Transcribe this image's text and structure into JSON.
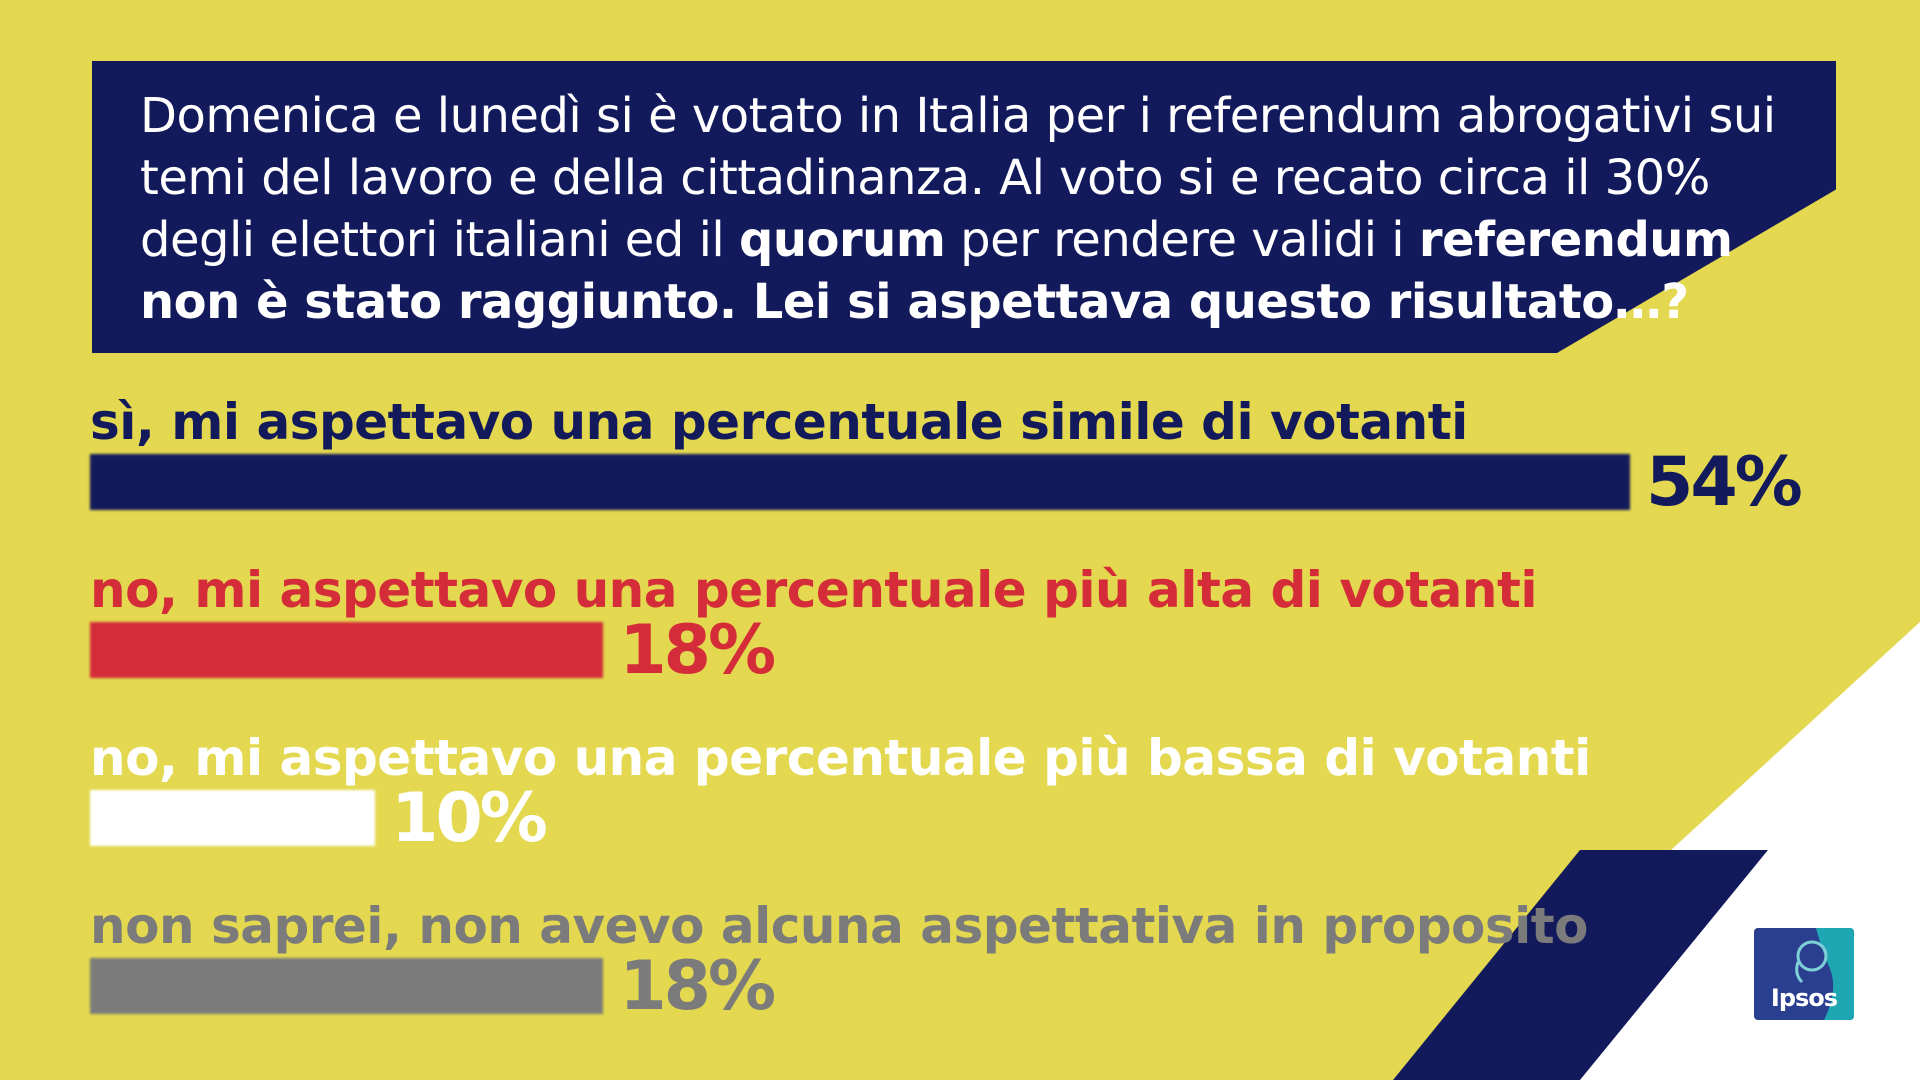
{
  "question": {
    "parts": [
      {
        "text": "Domenica e lunedì si è votato in Italia per i referendum abrogativi sui temi del lavoro e della cittadinanza. Al voto si e recato circa il 30% degli elettori italiani ed il ",
        "bold": false
      },
      {
        "text": "quorum",
        "bold": true
      },
      {
        "text": " per rendere validi i ",
        "bold": false
      },
      {
        "text": "referendum non è stato raggiunto. Lei si aspettava questo risultato…?",
        "bold": true
      }
    ]
  },
  "chart_data": {
    "type": "bar",
    "orientation": "horizontal",
    "categories": [
      "sì, mi aspettavo una percentuale simile di votanti",
      "no, mi aspettavo una percentuale più alta di votanti",
      "no, mi aspettavo una percentuale più bassa di votanti",
      "non saprei, non avevo alcuna aspettativa in proposito"
    ],
    "values": [
      54,
      18,
      10,
      18
    ],
    "value_labels": [
      "54%",
      "18%",
      "10%",
      "18%"
    ],
    "colors": [
      "#131a5c",
      "#d42d39",
      "#ffffff",
      "#7b7b7b"
    ],
    "unit": "%",
    "xlim": [
      0,
      54
    ]
  },
  "logo": {
    "text": "Ipsos",
    "color": "#2a3f8f",
    "accent": "#1fa6b3"
  },
  "palette": {
    "background": "#e3d84f",
    "navy": "#131a5c",
    "white": "#ffffff"
  }
}
